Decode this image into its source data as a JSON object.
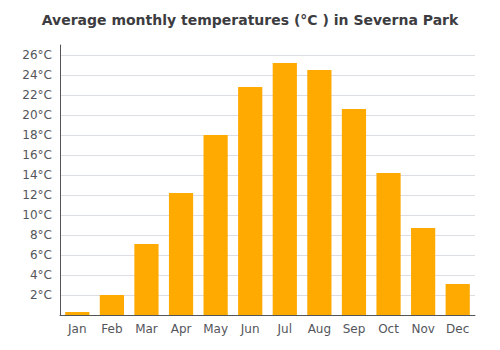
{
  "chart_data": {
    "type": "bar",
    "title": "Average monthly temperatures (°C ) in Severna Park",
    "categories": [
      "Jan",
      "Feb",
      "Mar",
      "Apr",
      "May",
      "Jun",
      "Jul",
      "Aug",
      "Sep",
      "Oct",
      "Nov",
      "Dec"
    ],
    "values": [
      0.3,
      2.0,
      7.1,
      12.2,
      18.0,
      22.8,
      25.2,
      24.5,
      20.6,
      14.2,
      8.7,
      3.1
    ],
    "color": "#FFAA00",
    "ylim": [
      0,
      27
    ],
    "yticks": [
      {
        "value": 2,
        "label": "2°C"
      },
      {
        "value": 4,
        "label": "4°C"
      },
      {
        "value": 6,
        "label": "6°C"
      },
      {
        "value": 8,
        "label": "8°C"
      },
      {
        "value": 10,
        "label": "10°C"
      },
      {
        "value": 12,
        "label": "12°C"
      },
      {
        "value": 14,
        "label": "14°C"
      },
      {
        "value": 16,
        "label": "16°C"
      },
      {
        "value": 18,
        "label": "18°C"
      },
      {
        "value": 20,
        "label": "20°C"
      },
      {
        "value": 22,
        "label": "22°C"
      },
      {
        "value": 24,
        "label": "24°C"
      },
      {
        "value": 26,
        "label": "26°C"
      }
    ],
    "grid": true
  }
}
